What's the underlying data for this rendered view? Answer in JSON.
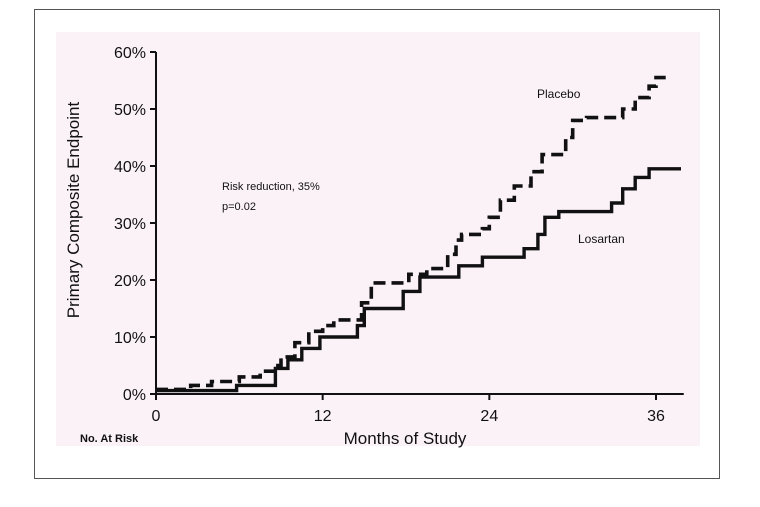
{
  "chart_data": {
    "type": "line",
    "title": "",
    "xlabel": "Months of Study",
    "ylabel": "Primary Composite Endpoint",
    "xlim": [
      0,
      38
    ],
    "ylim": [
      0,
      60
    ],
    "x_ticks": [
      0,
      12,
      24,
      36
    ],
    "x_tick_labels": [
      "0",
      "12",
      "24",
      "36"
    ],
    "y_ticks": [
      0,
      10,
      20,
      30,
      40,
      50,
      60
    ],
    "y_tick_labels": [
      "0%",
      "10%",
      "20%",
      "30%",
      "40%",
      "50%",
      "60%"
    ],
    "grid": false,
    "annotation_lines": [
      "Risk reduction, 35%",
      "p=0.02"
    ],
    "footer_label": "No. At Risk",
    "series": [
      {
        "name": "Placebo",
        "style": "dashed",
        "points": [
          [
            0,
            0.8
          ],
          [
            2.5,
            0.8
          ],
          [
            2.5,
            1.5
          ],
          [
            4,
            1.5
          ],
          [
            4,
            2.2
          ],
          [
            6,
            2.2
          ],
          [
            6,
            3
          ],
          [
            7.5,
            3
          ],
          [
            7.5,
            4
          ],
          [
            8.5,
            4
          ],
          [
            8.5,
            5
          ],
          [
            9,
            5
          ],
          [
            9,
            6.5
          ],
          [
            10,
            6.5
          ],
          [
            10,
            9
          ],
          [
            11,
            9
          ],
          [
            11,
            11
          ],
          [
            12,
            11
          ],
          [
            12,
            12
          ],
          [
            12.8,
            12
          ],
          [
            12.8,
            13
          ],
          [
            14.8,
            13
          ],
          [
            14.8,
            16
          ],
          [
            15.5,
            16
          ],
          [
            15.5,
            19.5
          ],
          [
            18.2,
            19.5
          ],
          [
            18.2,
            21
          ],
          [
            19.5,
            21
          ],
          [
            19.5,
            22
          ],
          [
            21,
            22
          ],
          [
            21,
            24.5
          ],
          [
            21.6,
            24.5
          ],
          [
            21.6,
            27
          ],
          [
            22,
            27
          ],
          [
            22,
            28
          ],
          [
            23.5,
            28
          ],
          [
            23.5,
            29
          ],
          [
            24,
            29
          ],
          [
            24,
            31
          ],
          [
            24.8,
            31
          ],
          [
            24.8,
            34
          ],
          [
            25.8,
            34
          ],
          [
            25.8,
            36.5
          ],
          [
            27,
            36.5
          ],
          [
            27,
            39
          ],
          [
            27.8,
            39
          ],
          [
            27.8,
            42
          ],
          [
            29.5,
            42
          ],
          [
            29.5,
            45
          ],
          [
            30,
            45
          ],
          [
            30,
            48
          ],
          [
            31,
            48
          ],
          [
            31,
            48.5
          ],
          [
            33.6,
            48.5
          ],
          [
            33.6,
            50
          ],
          [
            34.5,
            50
          ],
          [
            34.5,
            52
          ],
          [
            35.5,
            52
          ],
          [
            35.5,
            54
          ],
          [
            36,
            54
          ],
          [
            36,
            55.5
          ],
          [
            36.7,
            55.5
          ]
        ]
      },
      {
        "name": "Losartan",
        "style": "solid",
        "points": [
          [
            0,
            0.6
          ],
          [
            5.8,
            0.6
          ],
          [
            5.8,
            1.5
          ],
          [
            8.6,
            1.5
          ],
          [
            8.6,
            4.5
          ],
          [
            9.5,
            4.5
          ],
          [
            9.5,
            6
          ],
          [
            10.5,
            6
          ],
          [
            10.5,
            8
          ],
          [
            11.8,
            8
          ],
          [
            11.8,
            10
          ],
          [
            14.5,
            10
          ],
          [
            14.5,
            12
          ],
          [
            15,
            12
          ],
          [
            15,
            15
          ],
          [
            17.8,
            15
          ],
          [
            17.8,
            18
          ],
          [
            19,
            18
          ],
          [
            19,
            20.5
          ],
          [
            21.8,
            20.5
          ],
          [
            21.8,
            22.5
          ],
          [
            23.5,
            22.5
          ],
          [
            23.5,
            24
          ],
          [
            26.5,
            24
          ],
          [
            26.5,
            25.5
          ],
          [
            27.5,
            25.5
          ],
          [
            27.5,
            28
          ],
          [
            28,
            28
          ],
          [
            28,
            31
          ],
          [
            29,
            31
          ],
          [
            29,
            32
          ],
          [
            32.8,
            32
          ],
          [
            32.8,
            33.5
          ],
          [
            33.6,
            33.5
          ],
          [
            33.6,
            36
          ],
          [
            34.5,
            36
          ],
          [
            34.5,
            38
          ],
          [
            35.5,
            38
          ],
          [
            35.5,
            39.5
          ],
          [
            37.8,
            39.5
          ]
        ]
      }
    ]
  }
}
